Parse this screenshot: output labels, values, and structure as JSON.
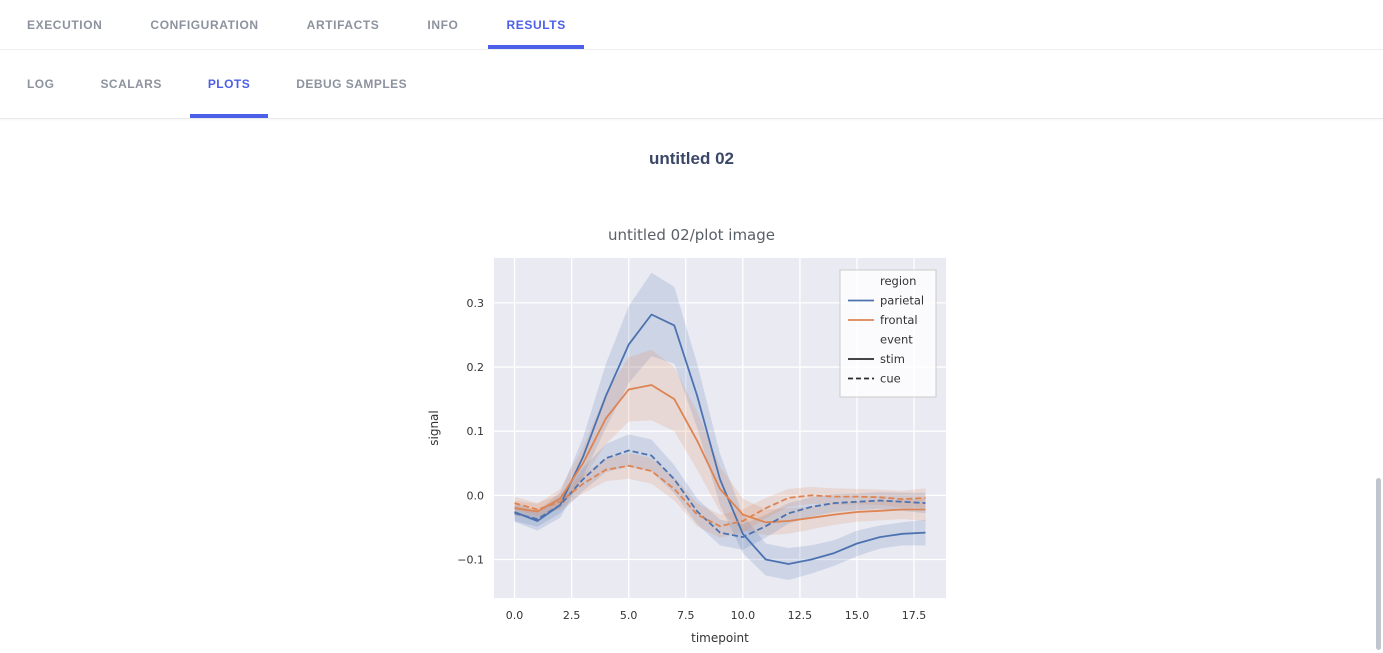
{
  "accent_color": "#4c5fe8",
  "top_tabs": {
    "active": "RESULTS",
    "items": [
      {
        "label": "EXECUTION"
      },
      {
        "label": "CONFIGURATION"
      },
      {
        "label": "ARTIFACTS"
      },
      {
        "label": "INFO"
      },
      {
        "label": "RESULTS"
      }
    ]
  },
  "sub_tabs": {
    "active": "PLOTS",
    "items": [
      {
        "label": "LOG"
      },
      {
        "label": "SCALARS"
      },
      {
        "label": "PLOTS"
      },
      {
        "label": "DEBUG SAMPLES"
      }
    ]
  },
  "main": {
    "section_title": "untitled 02"
  },
  "chart_data": {
    "type": "line",
    "title": "untitled 02/plot image",
    "xlabel": "timepoint",
    "ylabel": "signal",
    "xlim": [
      -0.9,
      18.9
    ],
    "ylim": [
      -0.16,
      0.37
    ],
    "xticks": [
      0.0,
      2.5,
      5.0,
      7.5,
      10.0,
      12.5,
      15.0,
      17.5
    ],
    "yticks": [
      -0.1,
      0.0,
      0.1,
      0.2,
      0.3
    ],
    "grid": true,
    "background": "#eaeaf2",
    "legend": {
      "position": "upper right",
      "entries": [
        {
          "label": "region",
          "type": "title"
        },
        {
          "label": "parietal",
          "type": "line",
          "color": "#4c72b0",
          "dash": "solid"
        },
        {
          "label": "frontal",
          "type": "line",
          "color": "#dd8452",
          "dash": "solid"
        },
        {
          "label": "event",
          "type": "title"
        },
        {
          "label": "stim",
          "type": "line",
          "color": "#2b2b2b",
          "dash": "solid"
        },
        {
          "label": "cue",
          "type": "line",
          "color": "#2b2b2b",
          "dash": "dashed"
        }
      ]
    },
    "x": [
      0,
      1,
      2,
      3,
      4,
      5,
      6,
      7,
      8,
      9,
      10,
      11,
      12,
      13,
      14,
      15,
      16,
      17,
      18
    ],
    "series": [
      {
        "name": "parietal / stim",
        "color": "#4c72b0",
        "dash": "solid",
        "values": [
          -0.026,
          -0.04,
          -0.015,
          0.06,
          0.155,
          0.235,
          0.282,
          0.265,
          0.155,
          0.025,
          -0.06,
          -0.1,
          -0.107,
          -0.1,
          -0.09,
          -0.075,
          -0.065,
          -0.06,
          -0.058
        ],
        "ci": [
          0.015,
          0.015,
          0.02,
          0.03,
          0.05,
          0.06,
          0.065,
          0.06,
          0.05,
          0.04,
          0.03,
          0.025,
          0.025,
          0.022,
          0.02,
          0.02,
          0.018,
          0.018,
          0.02
        ]
      },
      {
        "name": "frontal / stim",
        "color": "#dd8452",
        "dash": "solid",
        "values": [
          -0.02,
          -0.025,
          -0.005,
          0.05,
          0.12,
          0.165,
          0.172,
          0.15,
          0.085,
          0.01,
          -0.03,
          -0.042,
          -0.04,
          -0.035,
          -0.03,
          -0.026,
          -0.024,
          -0.022,
          -0.022
        ],
        "ci": [
          0.012,
          0.012,
          0.015,
          0.025,
          0.04,
          0.05,
          0.055,
          0.05,
          0.045,
          0.035,
          0.025,
          0.02,
          0.02,
          0.018,
          0.016,
          0.015,
          0.015,
          0.015,
          0.018
        ]
      },
      {
        "name": "parietal / cue",
        "color": "#4c72b0",
        "dash": "dashed",
        "values": [
          -0.028,
          -0.037,
          -0.015,
          0.025,
          0.058,
          0.07,
          0.062,
          0.025,
          -0.025,
          -0.058,
          -0.065,
          -0.048,
          -0.028,
          -0.018,
          -0.012,
          -0.01,
          -0.008,
          -0.01,
          -0.012
        ],
        "ci": [
          0.012,
          0.012,
          0.013,
          0.018,
          0.022,
          0.025,
          0.025,
          0.022,
          0.02,
          0.02,
          0.02,
          0.018,
          0.016,
          0.015,
          0.014,
          0.013,
          0.013,
          0.014,
          0.016
        ]
      },
      {
        "name": "frontal / cue",
        "color": "#dd8452",
        "dash": "dashed",
        "values": [
          -0.012,
          -0.022,
          -0.01,
          0.018,
          0.04,
          0.046,
          0.038,
          0.01,
          -0.03,
          -0.048,
          -0.04,
          -0.02,
          -0.004,
          0.0,
          -0.002,
          -0.002,
          -0.003,
          -0.006,
          -0.004
        ],
        "ci": [
          0.01,
          0.01,
          0.012,
          0.015,
          0.018,
          0.02,
          0.02,
          0.018,
          0.018,
          0.018,
          0.018,
          0.016,
          0.014,
          0.013,
          0.013,
          0.012,
          0.012,
          0.013,
          0.015
        ]
      }
    ]
  }
}
